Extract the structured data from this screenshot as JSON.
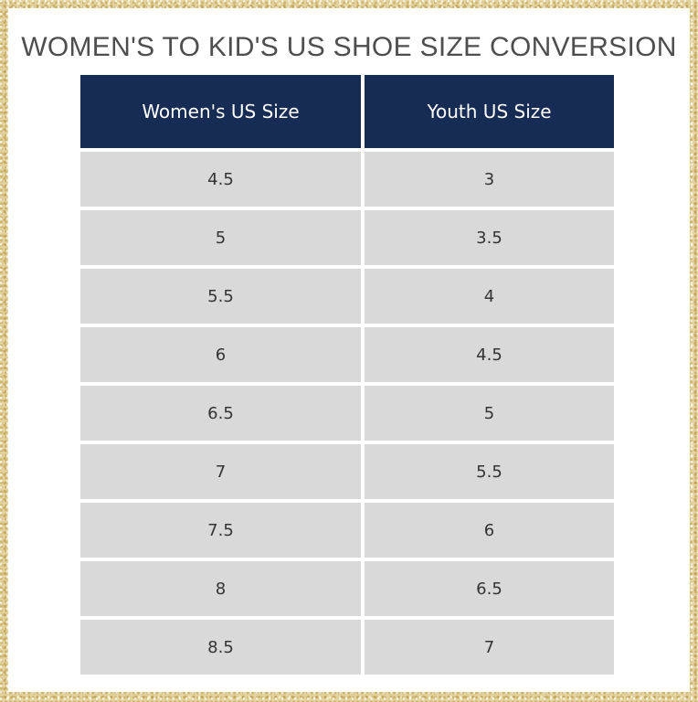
{
  "title": "WOMEN'S TO KID'S US SHOE SIZE CONVERSION",
  "table": {
    "headers": [
      "Women's US Size",
      "Youth US Size"
    ],
    "rows": [
      [
        "4.5",
        "3"
      ],
      [
        "5",
        "3.5"
      ],
      [
        "5.5",
        "4"
      ],
      [
        "6",
        "4.5"
      ],
      [
        "6.5",
        "5"
      ],
      [
        "7",
        "5.5"
      ],
      [
        "7.5",
        "6"
      ],
      [
        "8",
        "6.5"
      ],
      [
        "8.5",
        "7"
      ]
    ]
  },
  "colors": {
    "header_bg": "#172c55",
    "cell_bg": "#d9d9d9",
    "border_gold": "#e3d3a0"
  }
}
